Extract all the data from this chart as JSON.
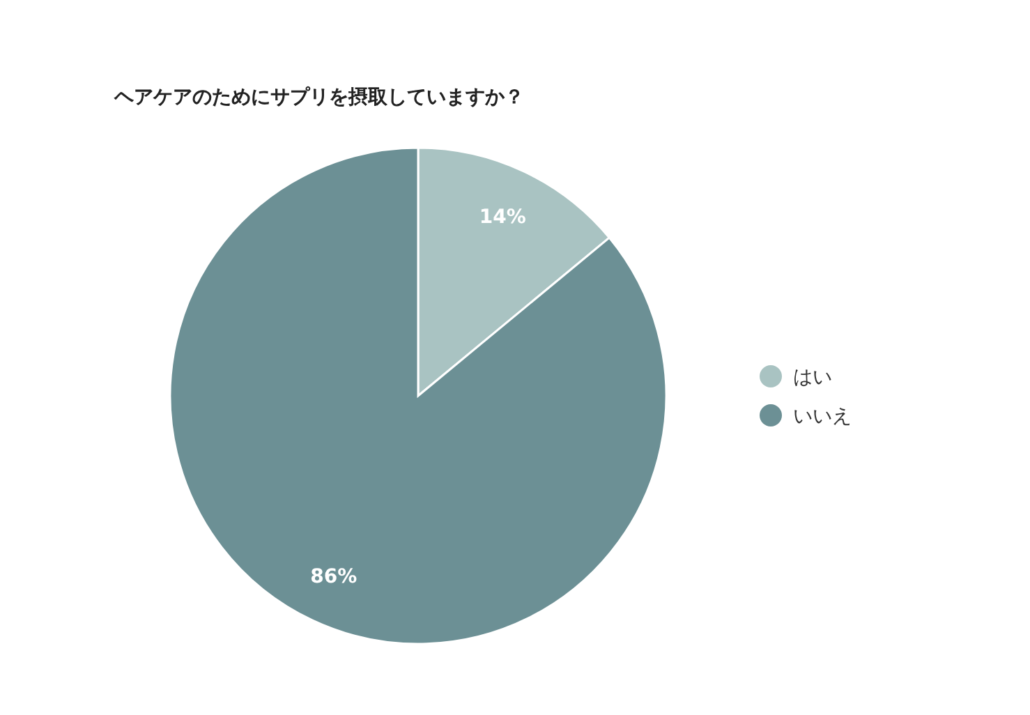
{
  "chart_data": {
    "type": "pie",
    "title": "ヘアケアのためにサプリを摂取していますか？",
    "categories": [
      "はい",
      "いいえ"
    ],
    "values": [
      14,
      86
    ],
    "colors": [
      "#a9c3c2",
      "#6c9095"
    ],
    "value_labels": [
      "14%",
      "86%"
    ],
    "legend": "right"
  }
}
